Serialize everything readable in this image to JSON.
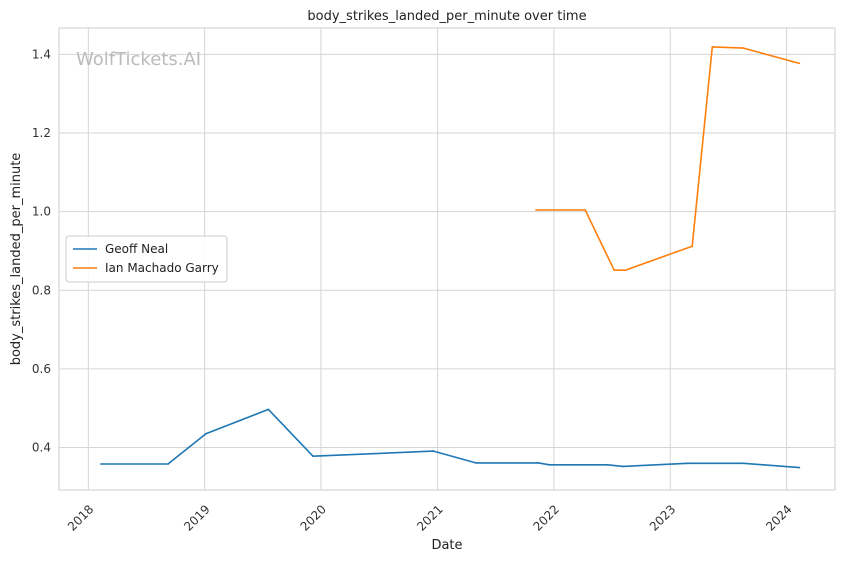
{
  "chart_data": {
    "type": "line",
    "title": "body_strikes_landed_per_minute over time",
    "xlabel": "Date",
    "ylabel": "body_strikes_landed_per_minute",
    "watermark": "WolfTickets.AI",
    "x_ticks": [
      "2018",
      "2019",
      "2020",
      "2021",
      "2022",
      "2023",
      "2024"
    ],
    "y_ticks": [
      "0.4",
      "0.6",
      "0.8",
      "1.0",
      "1.2",
      "1.4"
    ],
    "xlim": [
      "2017-10-01",
      "2024-06-01"
    ],
    "ylim": [
      0.292,
      1.467
    ],
    "grid": true,
    "legend_position": "center-left",
    "series": [
      {
        "name": "Geoff Neal",
        "color": "#1f77b4",
        "points": [
          [
            "2018-02-10",
            0.358
          ],
          [
            "2018-09-08",
            0.358
          ],
          [
            "2019-01-05",
            0.435
          ],
          [
            "2019-07-20",
            0.497
          ],
          [
            "2019-12-07",
            0.378
          ],
          [
            "2020-12-19",
            0.391
          ],
          [
            "2021-05-01",
            0.361
          ],
          [
            "2021-11-13",
            0.361
          ],
          [
            "2021-12-18",
            0.356
          ],
          [
            "2022-06-18",
            0.356
          ],
          [
            "2022-08-06",
            0.352
          ],
          [
            "2023-02-25",
            0.36
          ],
          [
            "2023-08-19",
            0.36
          ],
          [
            "2024-02-10",
            0.349
          ]
        ]
      },
      {
        "name": "Ian Machado Garry",
        "color": "#ff7f0e",
        "points": [
          [
            "2021-11-06",
            1.004
          ],
          [
            "2022-04-09",
            1.004
          ],
          [
            "2022-07-09",
            0.851
          ],
          [
            "2022-08-13",
            0.851
          ],
          [
            "2023-03-11",
            0.912
          ],
          [
            "2023-05-13",
            1.419
          ],
          [
            "2023-08-19",
            1.416
          ],
          [
            "2024-02-10",
            1.377
          ]
        ]
      }
    ]
  }
}
